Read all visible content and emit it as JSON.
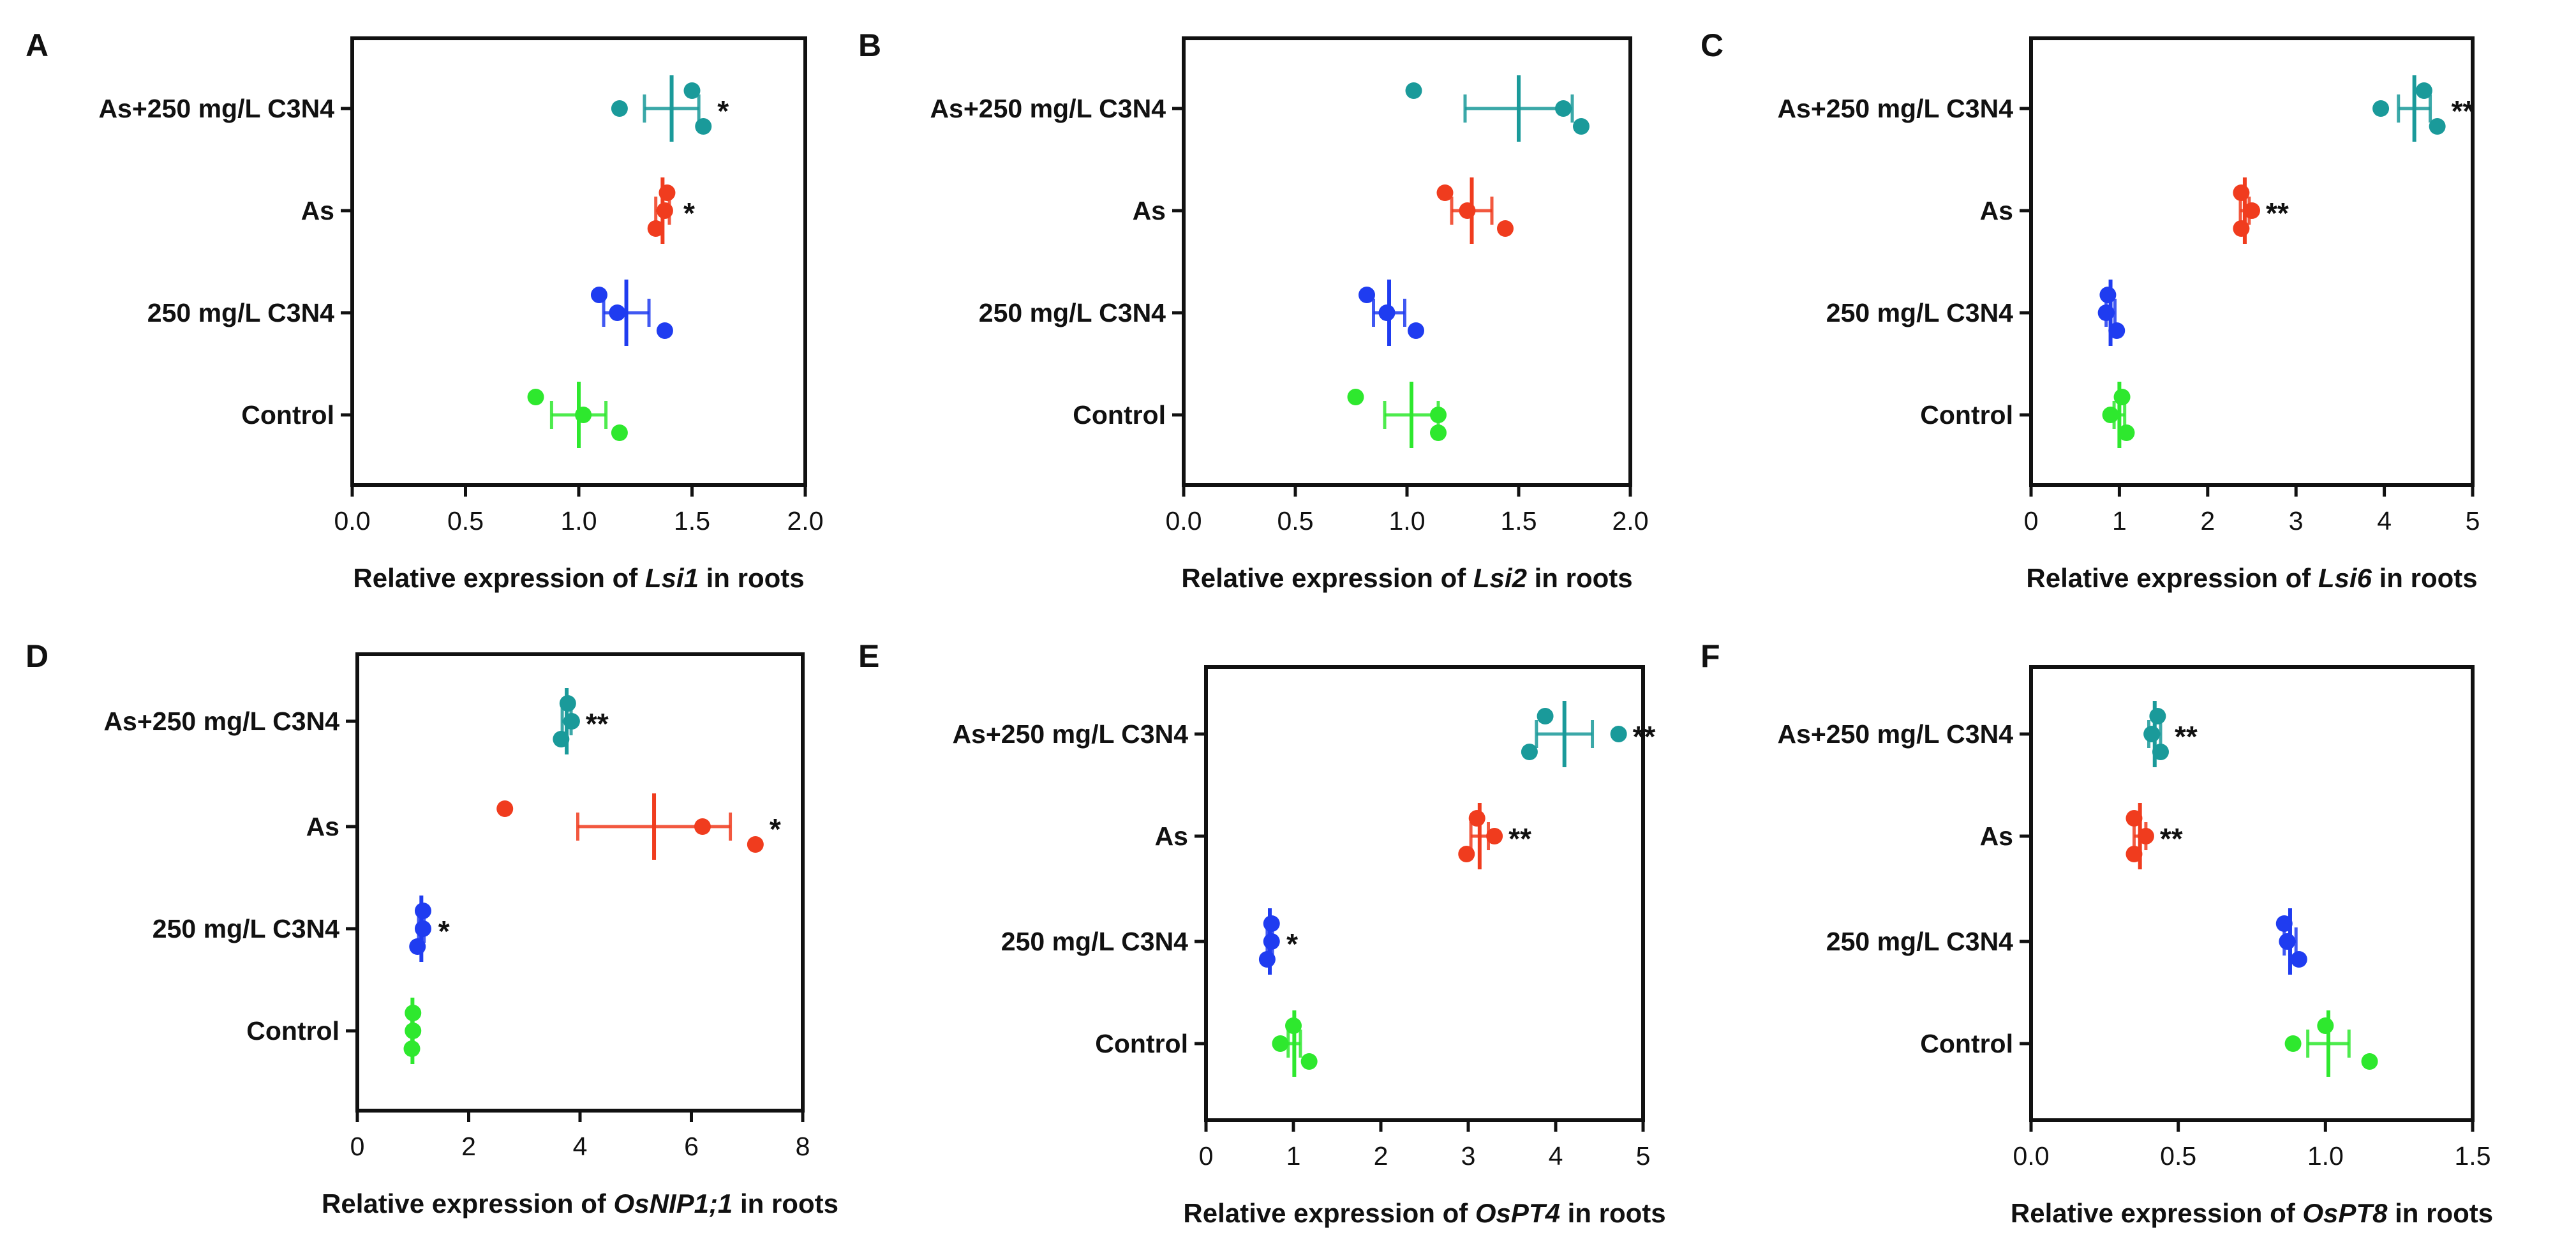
{
  "chart_data": [
    {
      "type": "scatter",
      "panel": "A",
      "categories": [
        "As+250 mg/L C3N4",
        "As",
        "250 mg/L C3N4",
        "Control"
      ],
      "colors": [
        "#1a9a9a",
        "#f03c1e",
        "#1f3cf0",
        "#2ee82e"
      ],
      "xlabel_pre": "Relative expression of ",
      "xlabel_gene": "Lsi1",
      "xlabel_post": " in roots",
      "xlim": [
        0,
        2
      ],
      "xticks": [
        "0.0",
        "0.5",
        "1.0",
        "1.5",
        "2.0"
      ],
      "groups": [
        {
          "name": "As+250 mg/L C3N4",
          "points": [
            1.5,
            1.18,
            1.55
          ],
          "mean": 1.41,
          "sd": 0.12,
          "sig": "*"
        },
        {
          "name": "As",
          "points": [
            1.39,
            1.38,
            1.34
          ],
          "mean": 1.37,
          "sd": 0.03,
          "sig": "*"
        },
        {
          "name": "250 mg/L C3N4",
          "points": [
            1.09,
            1.17,
            1.38
          ],
          "mean": 1.21,
          "sd": 0.1,
          "sig": ""
        },
        {
          "name": "Control",
          "points": [
            0.81,
            1.02,
            1.18
          ],
          "mean": 1.0,
          "sd": 0.12,
          "sig": ""
        }
      ]
    },
    {
      "type": "scatter",
      "panel": "B",
      "categories": [
        "As+250 mg/L C3N4",
        "As",
        "250 mg/L C3N4",
        "Control"
      ],
      "colors": [
        "#1a9a9a",
        "#f03c1e",
        "#1f3cf0",
        "#2ee82e"
      ],
      "xlabel_pre": "Relative expression of ",
      "xlabel_gene": "Lsi2",
      "xlabel_post": " in roots",
      "xlim": [
        0,
        2
      ],
      "xticks": [
        "0.0",
        "0.5",
        "1.0",
        "1.5",
        "2.0"
      ],
      "groups": [
        {
          "name": "As+250 mg/L C3N4",
          "points": [
            1.03,
            1.7,
            1.78
          ],
          "mean": 1.5,
          "sd": 0.24,
          "sig": ""
        },
        {
          "name": "As",
          "points": [
            1.17,
            1.27,
            1.44
          ],
          "mean": 1.29,
          "sd": 0.09,
          "sig": ""
        },
        {
          "name": "250 mg/L C3N4",
          "points": [
            0.82,
            0.91,
            1.04
          ],
          "mean": 0.92,
          "sd": 0.07,
          "sig": ""
        },
        {
          "name": "Control",
          "points": [
            0.77,
            1.14,
            1.14
          ],
          "mean": 1.02,
          "sd": 0.12,
          "sig": ""
        }
      ]
    },
    {
      "type": "scatter",
      "panel": "C",
      "categories": [
        "As+250 mg/L C3N4",
        "As",
        "250 mg/L C3N4",
        "Control"
      ],
      "colors": [
        "#1a9a9a",
        "#f03c1e",
        "#1f3cf0",
        "#2ee82e"
      ],
      "xlabel_pre": "Relative expression of ",
      "xlabel_gene": "Lsi6",
      "xlabel_post": " in roots",
      "xlim": [
        0,
        5
      ],
      "xticks": [
        "0",
        "1",
        "2",
        "3",
        "4",
        "5"
      ],
      "groups": [
        {
          "name": "As+250 mg/L C3N4",
          "points": [
            4.45,
            3.96,
            4.6
          ],
          "mean": 4.34,
          "sd": 0.18,
          "sig": "**"
        },
        {
          "name": "As",
          "points": [
            2.38,
            2.5,
            2.38
          ],
          "mean": 2.42,
          "sd": 0.05,
          "sig": "**"
        },
        {
          "name": "250 mg/L C3N4",
          "points": [
            0.87,
            0.85,
            0.97
          ],
          "mean": 0.9,
          "sd": 0.05,
          "sig": ""
        },
        {
          "name": "Control",
          "points": [
            1.03,
            0.9,
            1.08
          ],
          "mean": 1.0,
          "sd": 0.06,
          "sig": ""
        }
      ]
    },
    {
      "type": "scatter",
      "panel": "D",
      "categories": [
        "As+250 mg/L C3N4",
        "As",
        "250 mg/L C3N4",
        "Control"
      ],
      "colors": [
        "#1a9a9a",
        "#f03c1e",
        "#1f3cf0",
        "#2ee82e"
      ],
      "xlabel_pre": "Relative expression of ",
      "xlabel_gene": "OsNIP1;1",
      "xlabel_post": " in roots",
      "xlim": [
        0,
        8
      ],
      "xticks": [
        "0",
        "2",
        "4",
        "6",
        "8"
      ],
      "groups": [
        {
          "name": "As+250 mg/L C3N4",
          "points": [
            3.78,
            3.85,
            3.66
          ],
          "mean": 3.76,
          "sd": 0.08,
          "sig": "**"
        },
        {
          "name": "As",
          "points": [
            2.65,
            6.2,
            7.15
          ],
          "mean": 5.33,
          "sd": 1.37,
          "sig": "*"
        },
        {
          "name": "250 mg/L C3N4",
          "points": [
            1.18,
            1.18,
            1.08
          ],
          "mean": 1.15,
          "sd": 0.05,
          "sig": "*"
        },
        {
          "name": "Control",
          "points": [
            1.0,
            1.0,
            0.98
          ],
          "mean": 0.99,
          "sd": 0.01,
          "sig": ""
        }
      ]
    },
    {
      "type": "scatter",
      "panel": "E",
      "categories": [
        "As+250 mg/L C3N4",
        "As",
        "250 mg/L C3N4",
        "Control"
      ],
      "colors": [
        "#1a9a9a",
        "#f03c1e",
        "#1f3cf0",
        "#2ee82e"
      ],
      "xlabel_pre": "Relative expression of ",
      "xlabel_gene": "OsPT4",
      "xlabel_post": " in roots",
      "xlim": [
        0,
        5
      ],
      "xticks": [
        "0",
        "1",
        "2",
        "3",
        "4",
        "5"
      ],
      "groups": [
        {
          "name": "As+250 mg/L C3N4",
          "points": [
            3.88,
            4.72,
            3.7
          ],
          "mean": 4.1,
          "sd": 0.32,
          "sig": "**"
        },
        {
          "name": "As",
          "points": [
            3.1,
            3.3,
            2.98
          ],
          "mean": 3.13,
          "sd": 0.1,
          "sig": "**"
        },
        {
          "name": "250 mg/L C3N4",
          "points": [
            0.75,
            0.75,
            0.7
          ],
          "mean": 0.73,
          "sd": 0.03,
          "sig": "*"
        },
        {
          "name": "Control",
          "points": [
            1.0,
            0.85,
            1.18
          ],
          "mean": 1.01,
          "sd": 0.07,
          "sig": ""
        }
      ]
    },
    {
      "type": "scatter",
      "panel": "F",
      "categories": [
        "As+250 mg/L C3N4",
        "As",
        "250 mg/L C3N4",
        "Control"
      ],
      "colors": [
        "#1a9a9a",
        "#f03c1e",
        "#1f3cf0",
        "#2ee82e"
      ],
      "xlabel_pre": "Relative expression of ",
      "xlabel_gene": "OsPT8",
      "xlabel_post": " in roots",
      "xlim": [
        0,
        1.5
      ],
      "xticks": [
        "0.0",
        "0.5",
        "1.0",
        "1.5"
      ],
      "groups": [
        {
          "name": "As+250 mg/L C3N4",
          "points": [
            0.43,
            0.41,
            0.44
          ],
          "mean": 0.42,
          "sd": 0.02,
          "sig": "**"
        },
        {
          "name": "As",
          "points": [
            0.35,
            0.39,
            0.35
          ],
          "mean": 0.37,
          "sd": 0.02,
          "sig": "**"
        },
        {
          "name": "250 mg/L C3N4",
          "points": [
            0.86,
            0.87,
            0.91
          ],
          "mean": 0.88,
          "sd": 0.02,
          "sig": ""
        },
        {
          "name": "Control",
          "points": [
            1.0,
            0.89,
            1.15
          ],
          "mean": 1.01,
          "sd": 0.07,
          "sig": ""
        }
      ]
    }
  ]
}
